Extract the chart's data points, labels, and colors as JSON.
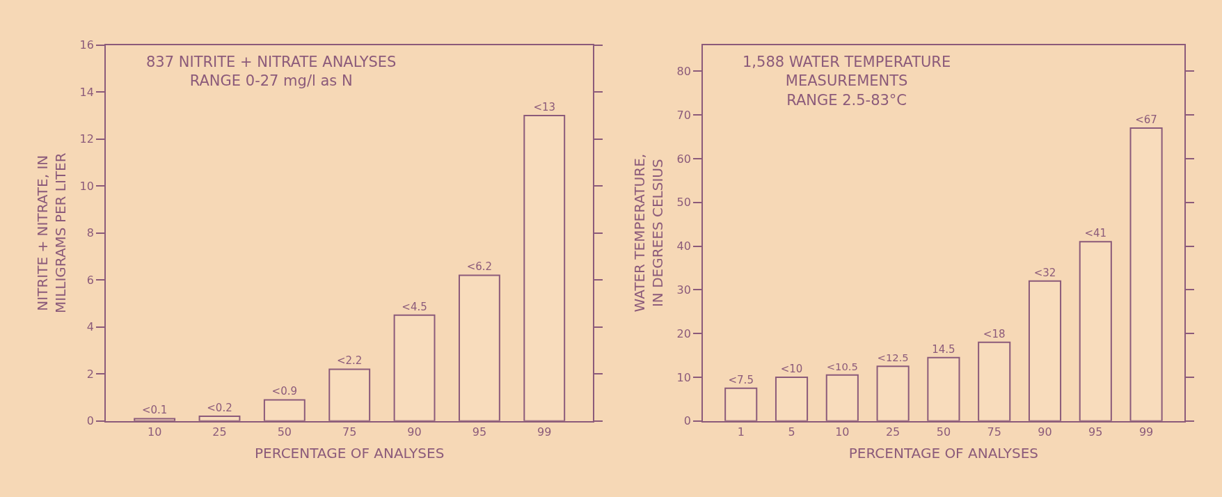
{
  "chart_data": [
    {
      "type": "bar",
      "title": "837 NITRITE + NITRATE ANALYSES\nRANGE 0-27 mg/l as N",
      "xlabel": "PERCENTAGE OF ANALYSES",
      "ylabel": "NITRITE + NITRATE, IN\nMILLIGRAMS PER LITER",
      "categories": [
        "10",
        "25",
        "50",
        "75",
        "90",
        "95",
        "99"
      ],
      "values": [
        0.1,
        0.2,
        0.9,
        2.2,
        4.5,
        6.2,
        13
      ],
      "value_labels": [
        "<0.1",
        "<0.2",
        "<0.9",
        "<2.2",
        "<4.5",
        "<6.2",
        "<13"
      ],
      "color": "#f8dcbc",
      "ylim": [
        0,
        16
      ],
      "yticks": [
        0,
        2,
        4,
        6,
        8,
        10,
        12,
        14,
        16
      ]
    },
    {
      "type": "bar",
      "title": "1,588 WATER TEMPERATURE\nMEASUREMENTS\nRANGE 2.5-83°C",
      "xlabel": "PERCENTAGE OF ANALYSES",
      "ylabel": "WATER TEMPERATURE,\nIN DEGREES CELSIUS",
      "categories": [
        "1",
        "5",
        "10",
        "25",
        "50",
        "75",
        "90",
        "95",
        "99"
      ],
      "values": [
        7.5,
        10,
        10.5,
        12.5,
        14.5,
        18,
        32,
        41,
        67
      ],
      "value_labels": [
        "<7.5",
        "<10",
        "<10.5",
        "<12.5",
        "14.5",
        "<18",
        "<32",
        "<41",
        "<67"
      ],
      "color": "#f8dcbc",
      "ylim": [
        0,
        86
      ],
      "yticks": [
        0,
        10,
        20,
        30,
        40,
        50,
        60,
        70,
        80
      ]
    }
  ]
}
